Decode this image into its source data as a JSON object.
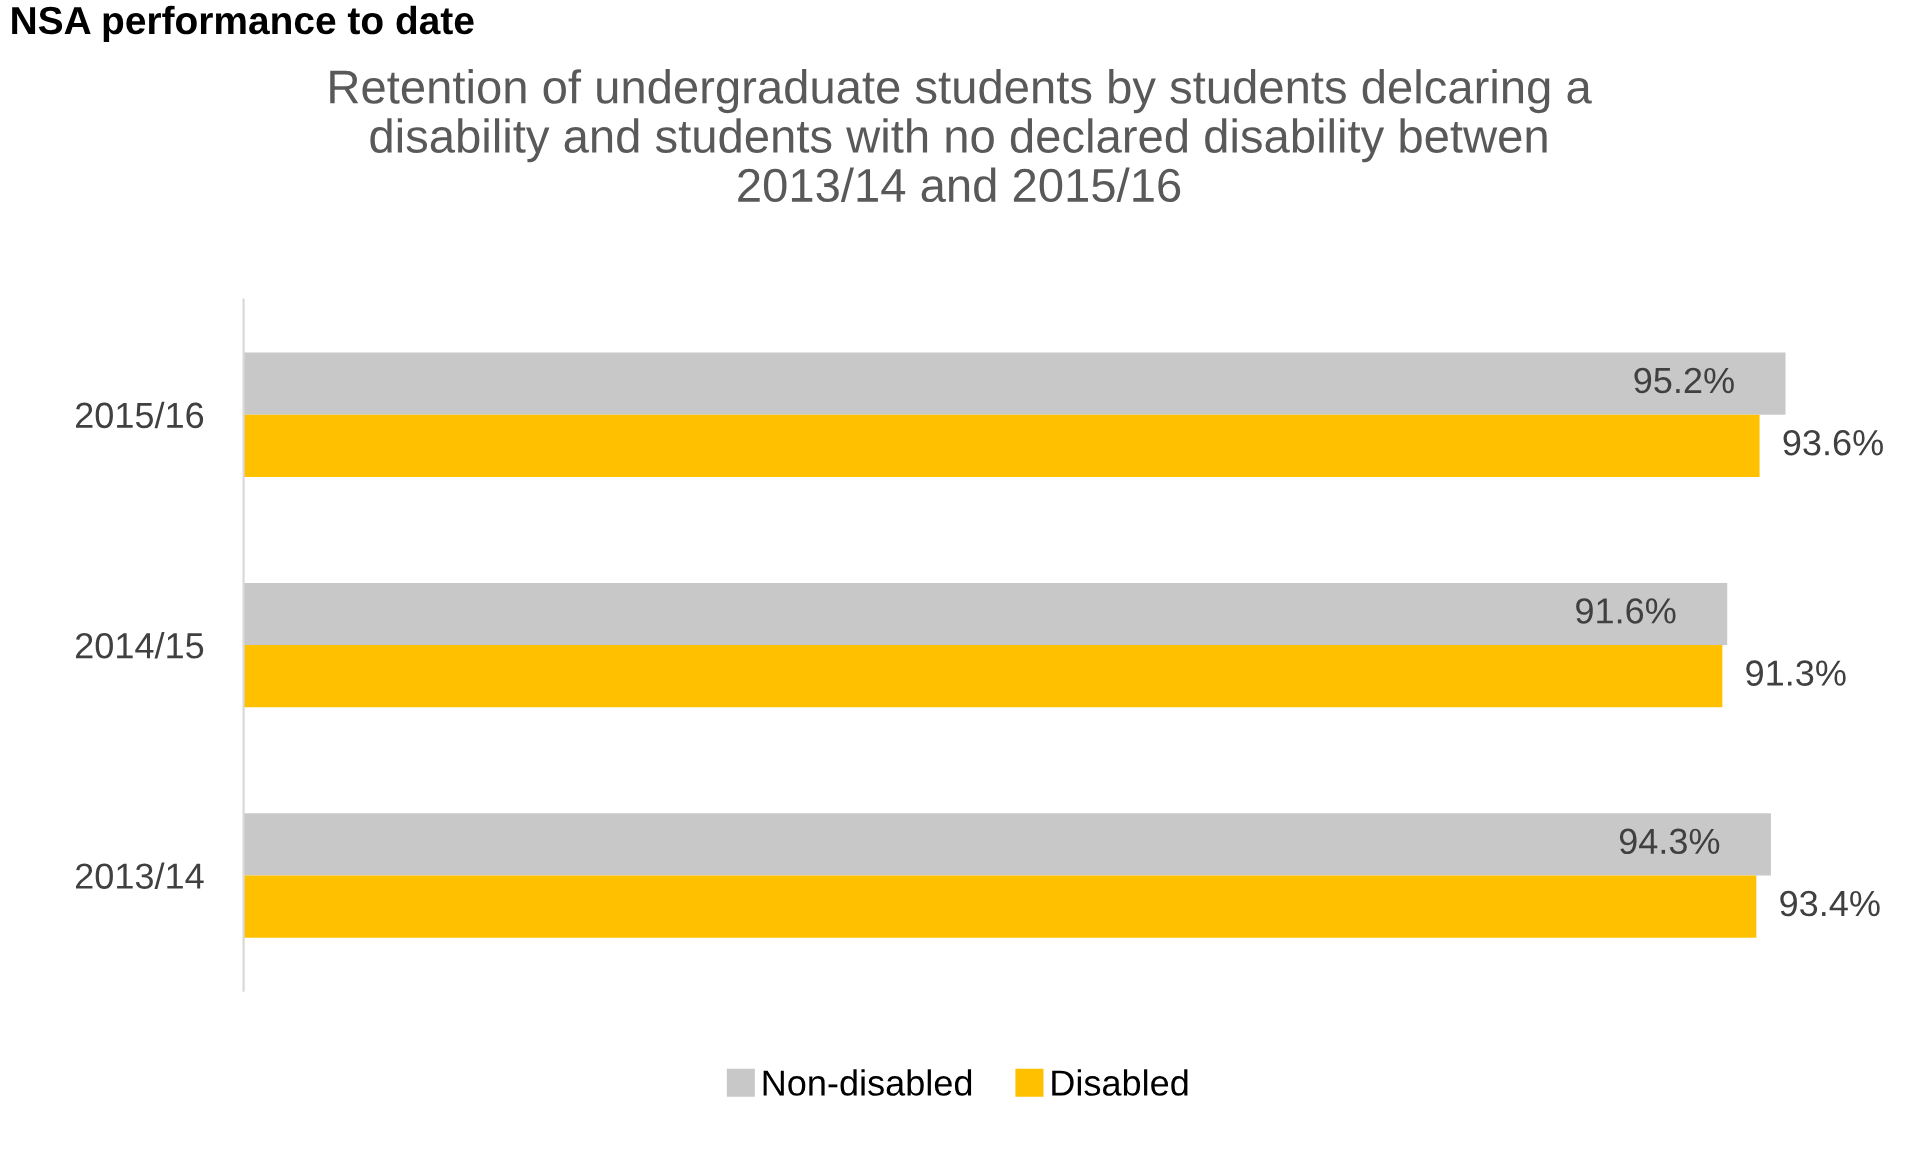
{
  "chart_data": {
    "type": "bar",
    "orientation": "horizontal",
    "title": "Retention of undergraduate students by students delcaring a\ndisability and students with no declared disability betwen\n2013/14 and 2015/16",
    "annotations": [
      "NSA performance to date"
    ],
    "categories": [
      "2015/16",
      "2014/15",
      "2013/14"
    ],
    "series": [
      {
        "name": "Non-disabled",
        "color": "#c8c8c8",
        "values": [
          95.2,
          91.6,
          94.3
        ],
        "value_labels": [
          "95.2%",
          "91.6%",
          "94.3%"
        ]
      },
      {
        "name": "Disabled",
        "color": "#ffc000",
        "values": [
          93.6,
          91.3,
          93.4
        ],
        "value_labels": [
          "93.6%",
          "91.3%",
          "93.4%"
        ]
      }
    ],
    "legend": "bottom",
    "grid": false
  }
}
